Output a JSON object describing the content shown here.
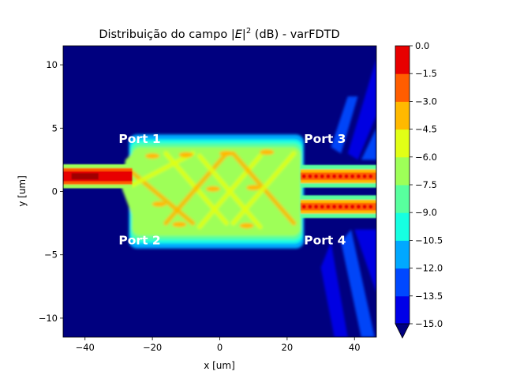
{
  "chart_data": {
    "type": "heatmap",
    "title": {
      "prefix": "Distribuição do campo |",
      "var": "E",
      "mid": "|",
      "sup": "2",
      "suffix": " (dB) - varFDTD"
    },
    "xlabel": "x [um]",
    "ylabel": "y [um]",
    "xlim": [
      -46.5,
      46.5
    ],
    "ylim": [
      -11.5,
      11.5
    ],
    "xticks": [
      -40,
      -20,
      0,
      20,
      40
    ],
    "yticks": [
      -10,
      -5,
      0,
      5,
      10
    ],
    "colorbar": {
      "levels": [
        -15.0,
        -13.5,
        -12.0,
        -10.5,
        -9.0,
        -7.5,
        -6.0,
        -4.5,
        -3.0,
        -1.5,
        0.0
      ],
      "tick_labels": [
        "−15.0",
        "−13.5",
        "−12.0",
        "−10.5",
        "−9.0",
        "−7.5",
        "−6.0",
        "−4.5",
        "−3.0",
        "−1.5",
        "0.0"
      ],
      "colors": [
        "#00007f",
        "#0000e8",
        "#0048ff",
        "#00a8ff",
        "#16ffe1",
        "#58ff9e",
        "#9eff58",
        "#e1ff16",
        "#ffb900",
        "#ff5d00",
        "#e80000",
        "#a00000"
      ],
      "extend": "min"
    },
    "annotations": [
      {
        "text": "Port 1",
        "x": -30,
        "y": 4.2
      },
      {
        "text": "Port 2",
        "x": -30,
        "y": -3.8
      },
      {
        "text": "Port 3",
        "x": 25,
        "y": 4.2
      },
      {
        "text": "Port 4",
        "x": 25,
        "y": -3.8
      }
    ],
    "field_regions": {
      "input_waveguide": {
        "x": [
          -46.5,
          -26
        ],
        "y_center": 1.2,
        "width": 1.2
      },
      "mmi": {
        "x": [
          -26,
          24
        ],
        "y": [
          -3.5,
          3.5
        ]
      },
      "output_waveguides": [
        {
          "x": [
            24,
            46.5
          ],
          "y_center": 1.2
        },
        {
          "x": [
            24,
            46.5
          ],
          "y_center": -1.2
        }
      ]
    }
  }
}
